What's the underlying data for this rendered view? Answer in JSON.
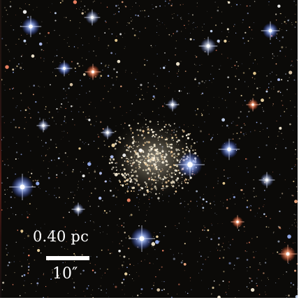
{
  "image": {
    "subject": "star-cluster-field",
    "colors": {
      "background": "#0b0a08",
      "cluster_core": "#f2ead8",
      "blue_star": "#8fb0ff",
      "red_star": "#ff8a6a",
      "yellow_star": "#ffe2a0",
      "label": "#ffffff"
    }
  },
  "scale_bar": {
    "physical_label": "0.40 pc",
    "angular_label": "10″"
  }
}
